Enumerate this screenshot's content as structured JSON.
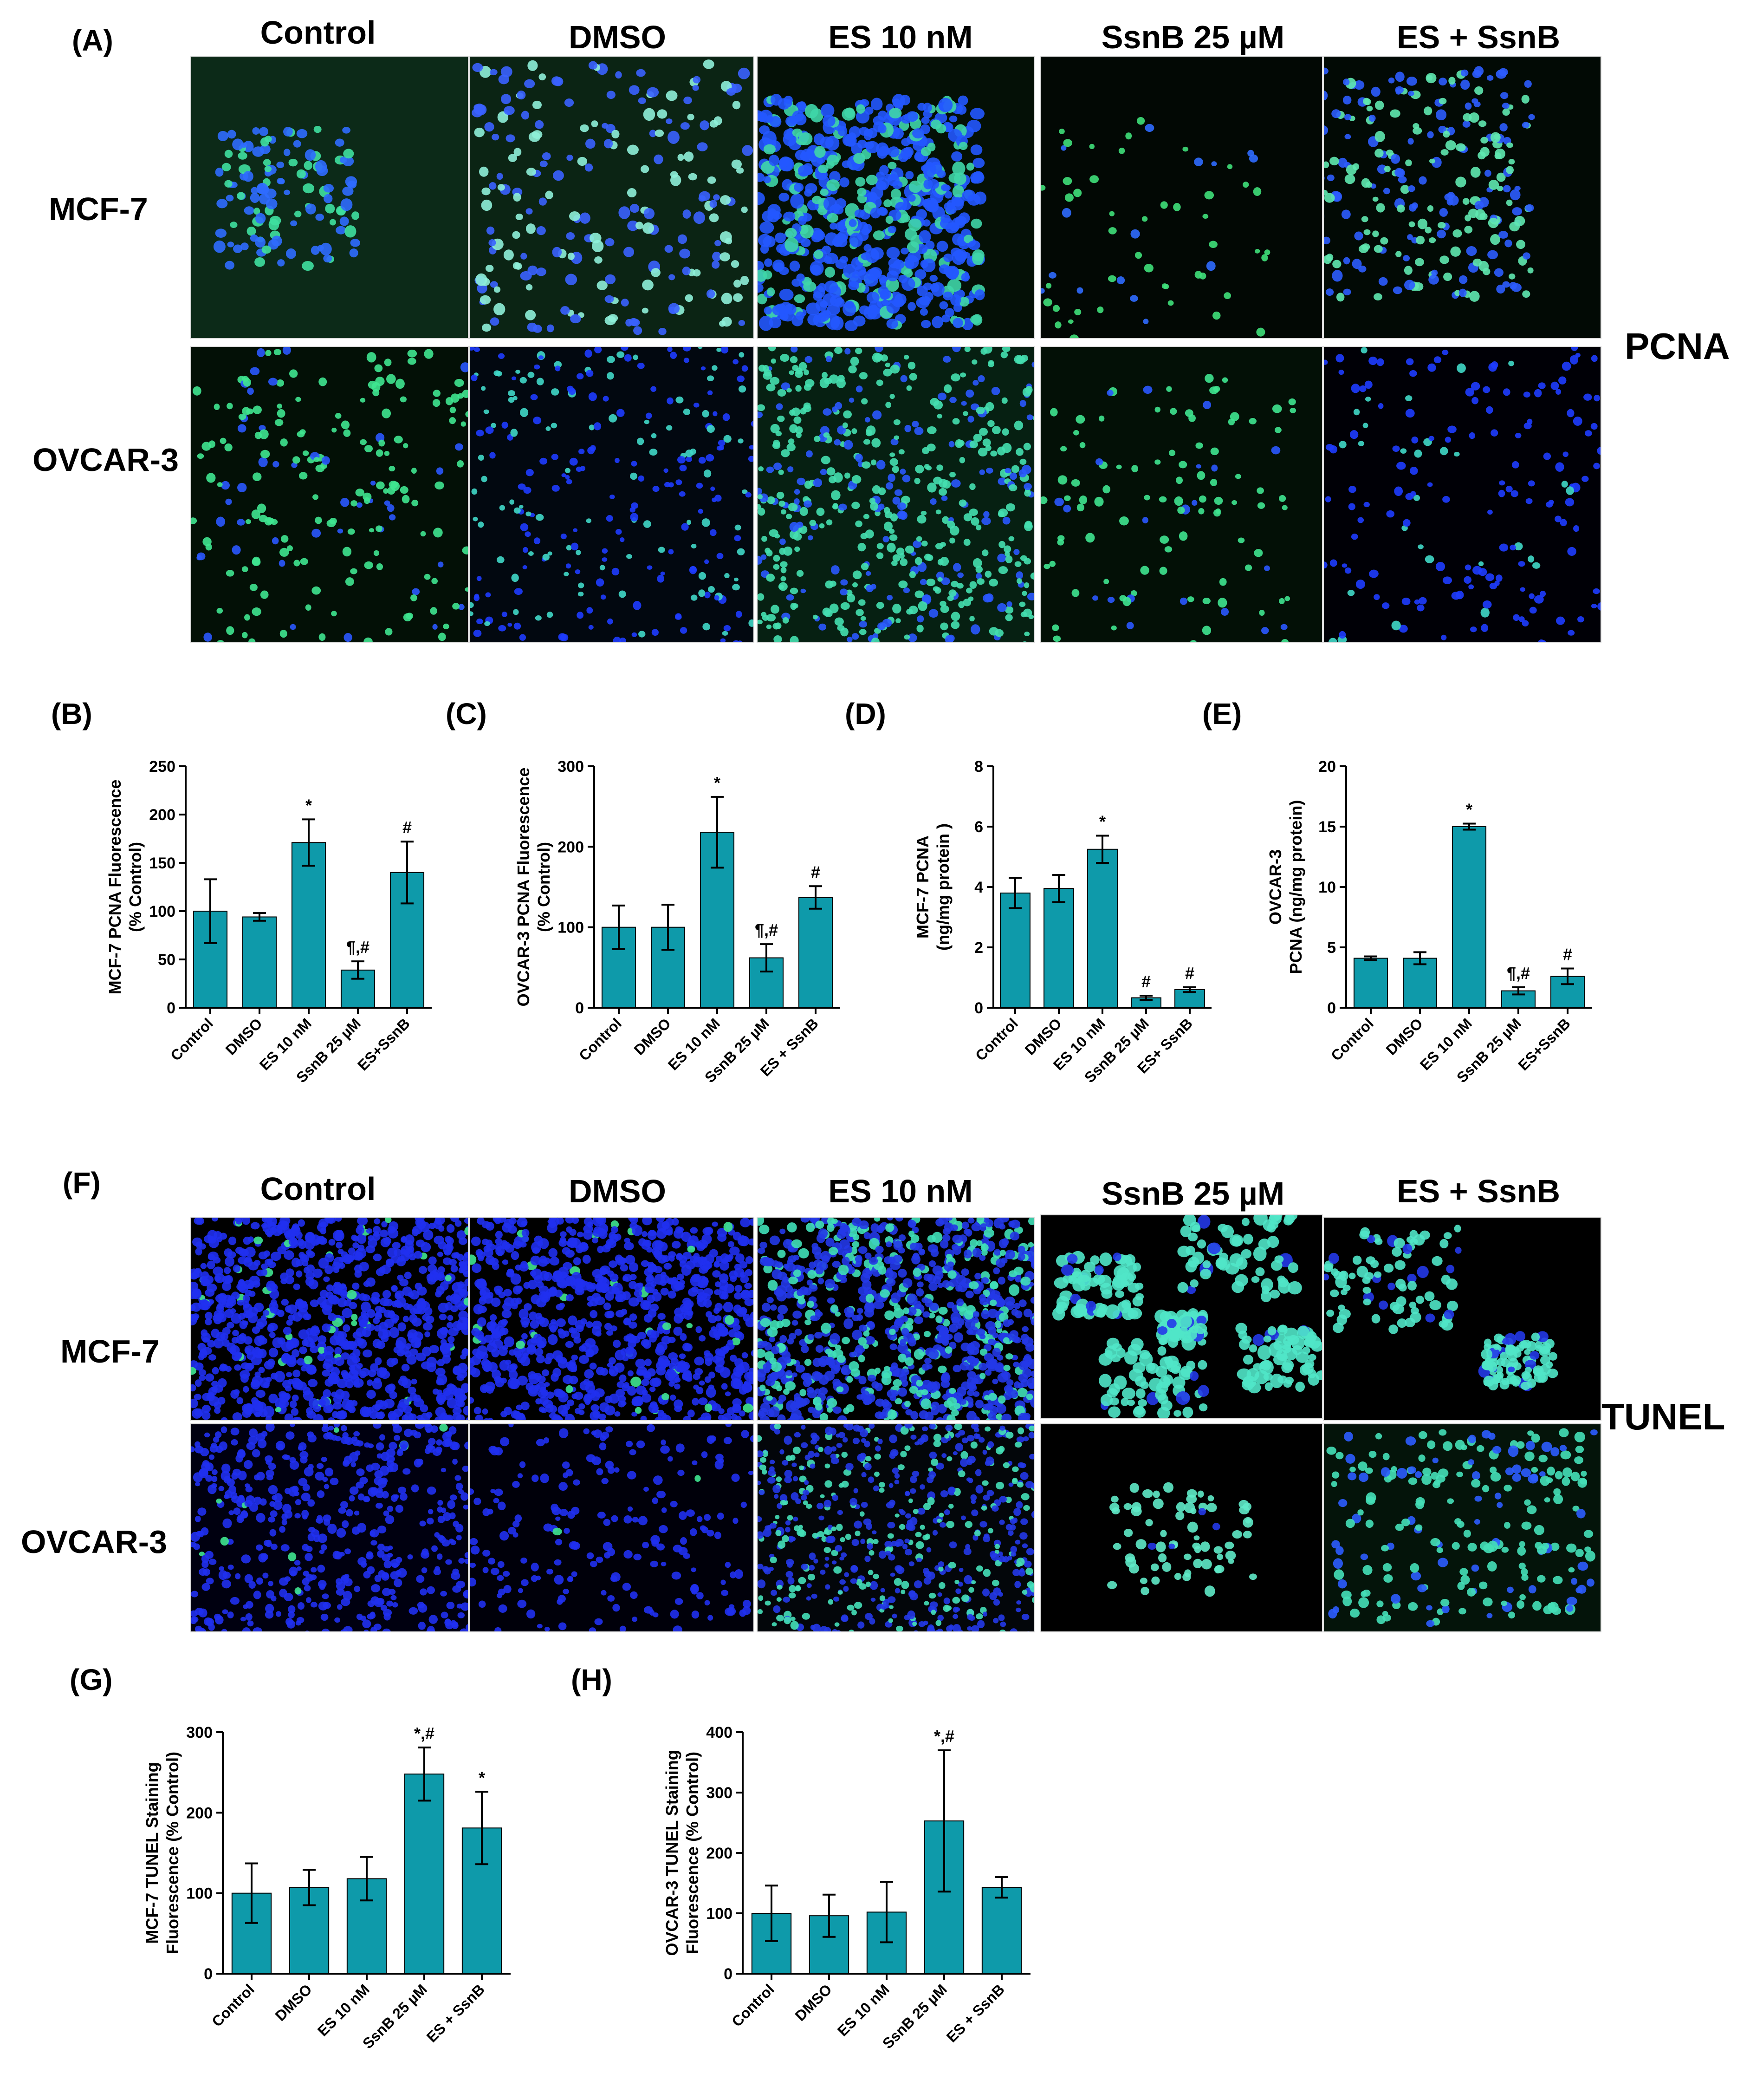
{
  "panels": {
    "A": "(A)",
    "B": "(B)",
    "C": "(C)",
    "D": "(D)",
    "E": "(E)",
    "F": "(F)",
    "G": "(G)",
    "H": "(H)"
  },
  "section_pcna": {
    "columns": [
      "Control",
      "DMSO",
      "ES 10 nM",
      "SsnB 25 µM",
      "ES + SsnB"
    ],
    "rows": [
      "MCF-7",
      "OVCAR-3"
    ],
    "stain_label": "PCNA"
  },
  "section_tunel": {
    "columns": [
      "Control",
      "DMSO",
      "ES 10 nM",
      "SsnB 25 µM",
      "ES + SsnB"
    ],
    "rows": [
      "MCF-7",
      "OVCAR-3"
    ],
    "stain_label": "TUNEL"
  },
  "colors": {
    "bar": "#0e9aaa",
    "nucleus_blue": "#1f3cff",
    "stain_green": "#2fe08a",
    "cyan": "#40e6c8"
  },
  "chart_data": [
    {
      "id": "B",
      "type": "bar",
      "ylabel": [
        "MCF-7 PCNA Fluorescence",
        "(% Control)"
      ],
      "categories": [
        "Control",
        "DMSO",
        "ES 10 nM",
        "SsnB 25 µM",
        "ES+SsnB"
      ],
      "values": [
        100,
        94,
        171,
        39,
        140
      ],
      "errors": [
        33,
        4,
        24,
        9,
        32
      ],
      "annotations": [
        "",
        "",
        "*",
        "¶,#",
        "#"
      ],
      "ylim": [
        0,
        250
      ],
      "yticks": [
        0,
        50,
        100,
        150,
        200,
        250
      ]
    },
    {
      "id": "C",
      "type": "bar",
      "ylabel": [
        "OVCAR-3 PCNA Fluorescence",
        "(% Control)"
      ],
      "categories": [
        "Control",
        "DMSO",
        "ES 10 nM",
        "SsnB 25 µM",
        "ES + SsnB"
      ],
      "values": [
        100,
        100,
        218,
        62,
        137
      ],
      "errors": [
        27,
        28,
        44,
        17,
        14
      ],
      "annotations": [
        "",
        "",
        "*",
        "¶,#",
        "#"
      ],
      "ylim": [
        0,
        300
      ],
      "yticks": [
        0,
        100,
        200,
        300
      ]
    },
    {
      "id": "D",
      "type": "bar",
      "ylabel": [
        "MCF-7 PCNA",
        "(ng/mg protein )"
      ],
      "categories": [
        "Control",
        "DMSO",
        "ES 10 nM",
        "SsnB 25 µM",
        "ES+ SsnB"
      ],
      "values": [
        3.8,
        3.95,
        5.25,
        0.33,
        0.6
      ],
      "errors": [
        0.5,
        0.45,
        0.45,
        0.07,
        0.08
      ],
      "annotations": [
        "",
        "",
        "*",
        "#",
        "#"
      ],
      "ylim": [
        0,
        8
      ],
      "yticks": [
        0,
        2,
        4,
        6,
        8
      ]
    },
    {
      "id": "E",
      "type": "bar",
      "ylabel": [
        "OVCAR-3",
        "PCNA (ng/mg protein)"
      ],
      "categories": [
        "Control",
        "DMSO",
        "ES 10 nM",
        "SsnB 25 µM",
        "ES+SsnB"
      ],
      "values": [
        4.1,
        4.1,
        15.0,
        1.4,
        2.6
      ],
      "errors": [
        0.15,
        0.5,
        0.25,
        0.3,
        0.65
      ],
      "annotations": [
        "",
        "",
        "*",
        "¶,#",
        "#"
      ],
      "ylim": [
        0,
        20
      ],
      "yticks": [
        0,
        5,
        10,
        15,
        20
      ]
    },
    {
      "id": "G",
      "type": "bar",
      "ylabel": [
        "MCF-7 TUNEL Staining",
        "Fluorescence (% Control)"
      ],
      "categories": [
        "Control",
        "DMSO",
        "ES 10 nM",
        "SsnB 25 µM",
        "ES + SsnB"
      ],
      "values": [
        100,
        107,
        118,
        248,
        181
      ],
      "errors": [
        37,
        22,
        27,
        33,
        45
      ],
      "annotations": [
        "",
        "",
        "",
        "*,#",
        "*"
      ],
      "ylim": [
        0,
        300
      ],
      "yticks": [
        0,
        100,
        200,
        300
      ]
    },
    {
      "id": "H",
      "type": "bar",
      "ylabel": [
        "OVCAR-3 TUNEL Staining",
        "Fluorescence (% Control)"
      ],
      "categories": [
        "Control",
        "DMSO",
        "ES 10 nM",
        "SsnB 25 µM",
        "ES + SsnB"
      ],
      "values": [
        100,
        96,
        102,
        253,
        143
      ],
      "errors": [
        46,
        35,
        50,
        117,
        17
      ],
      "annotations": [
        "",
        "",
        "",
        "*,#",
        ""
      ],
      "ylim": [
        0,
        400
      ],
      "yticks": [
        0,
        100,
        200,
        300,
        400
      ]
    }
  ]
}
